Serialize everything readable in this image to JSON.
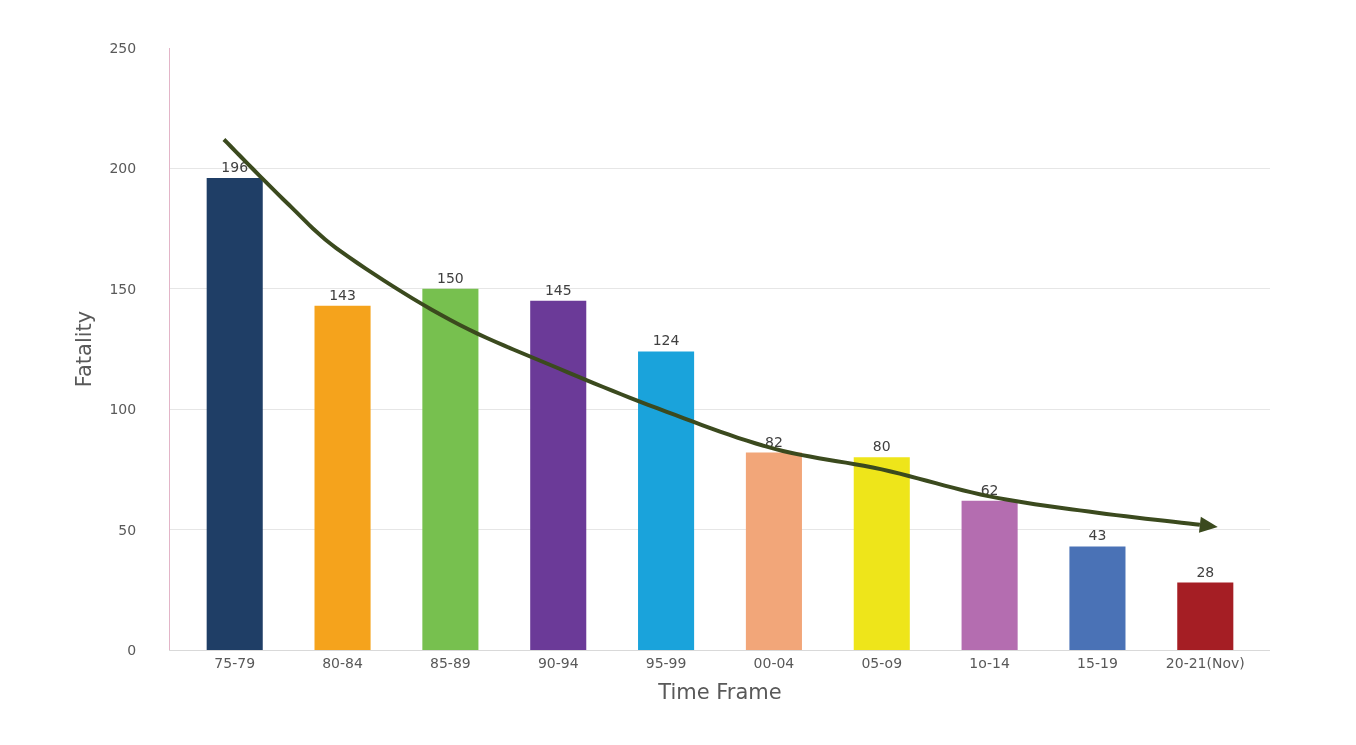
{
  "chart_data": {
    "type": "bar",
    "xlabel": "Time Frame",
    "ylabel": "Fatality",
    "categories": [
      "75-79",
      "80-84",
      "85-89",
      "90-94",
      "95-99",
      "00-04",
      "05-o9",
      "1o-14",
      "15-19",
      "20-21(Nov)"
    ],
    "values": [
      196,
      143,
      150,
      145,
      124,
      82,
      80,
      62,
      43,
      28
    ],
    "colors": [
      "#1f3e66",
      "#f5a31c",
      "#77c04f",
      "#6b3a98",
      "#1aa3db",
      "#f2a679",
      "#eee51a",
      "#b46db0",
      "#4a72b6",
      "#a51e24"
    ],
    "ylim": [
      0,
      250
    ],
    "yticks": [
      0,
      50,
      100,
      150,
      200,
      250
    ],
    "grid": "y",
    "data_labels": true
  }
}
